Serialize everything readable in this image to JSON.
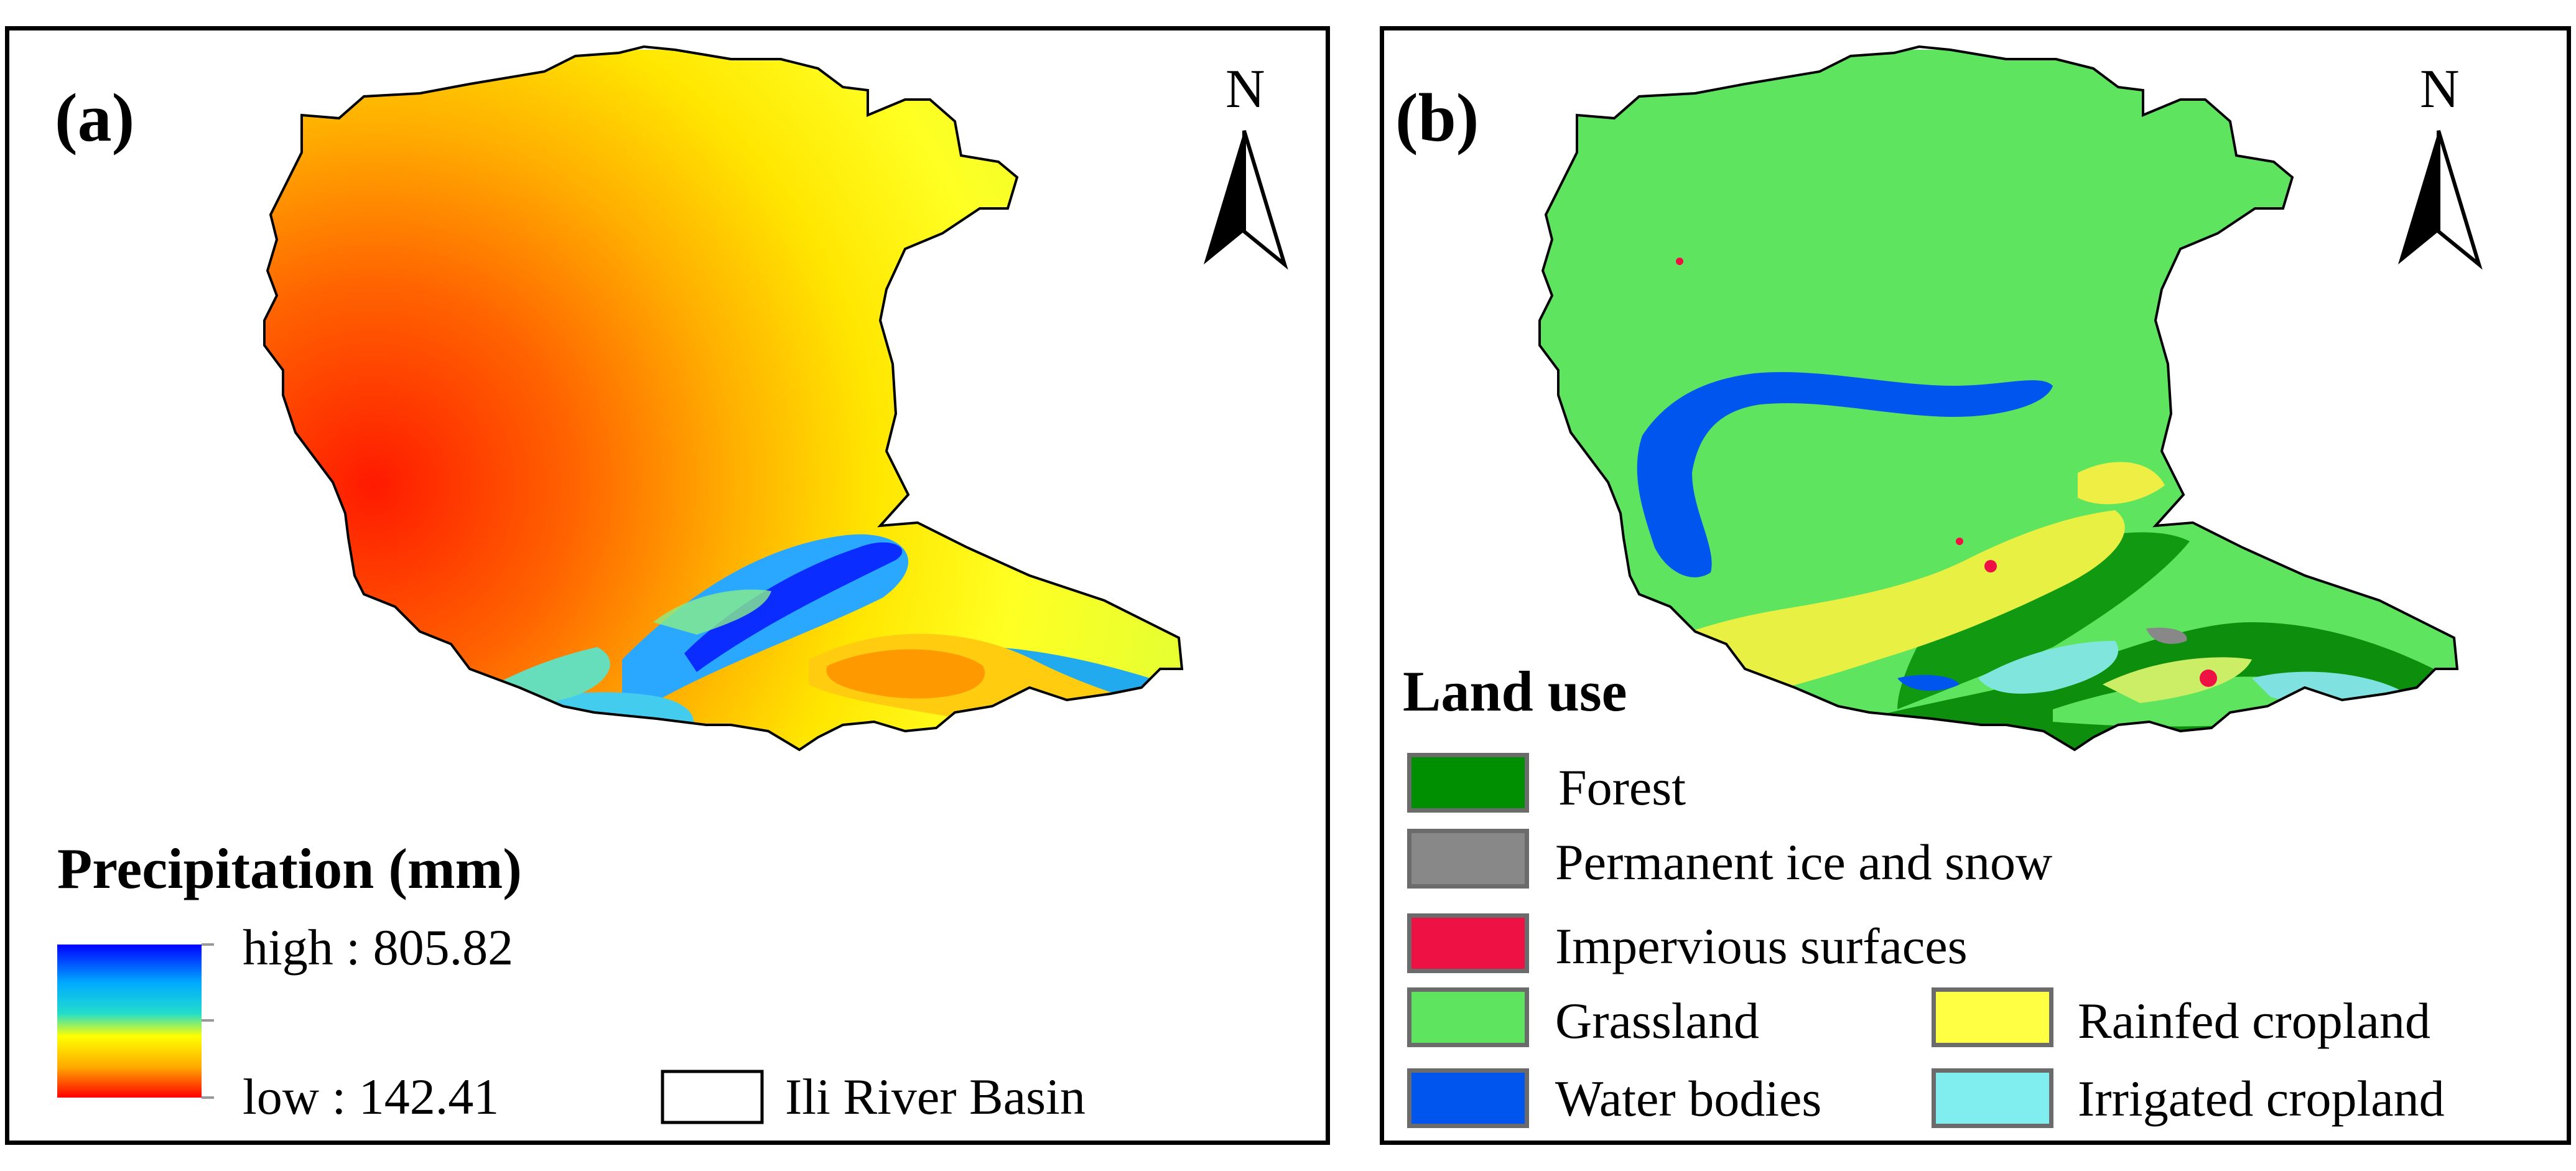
{
  "panel_a": {
    "label": "(a)",
    "north_label": "N",
    "legend_title": "Precipitation (mm)",
    "high_label": "high : 805.82",
    "low_label": "low : 142.41",
    "high_value": 805.82,
    "low_value": 142.41,
    "ramp_colors": [
      "#0000ff",
      "#00aaff",
      "#22ddcc",
      "#ffff00",
      "#ffaa00",
      "#ff0000"
    ],
    "boundary_legend_label": "Ili River Basin"
  },
  "panel_b": {
    "label": "(b)",
    "north_label": "N",
    "legend_title": "Land use",
    "classes": [
      {
        "name": "Forest",
        "color": "#008f00"
      },
      {
        "name": "Permanent ice and snow",
        "color": "#888888"
      },
      {
        "name": "Impervious surfaces",
        "color": "#ee1144"
      },
      {
        "name": "Grassland",
        "color": "#5fe45f"
      },
      {
        "name": "Water bodies",
        "color": "#0055ee"
      },
      {
        "name": "Rainfed cropland",
        "color": "#ffff44"
      },
      {
        "name": "Irrigated cropland",
        "color": "#80eeee"
      }
    ]
  }
}
